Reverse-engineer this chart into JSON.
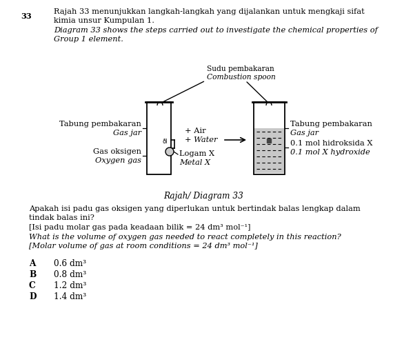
{
  "question_number": "33",
  "title_malay_line1": "Rajah 33 menunjukkan langkah-langkah yang dijalankan untuk mengkaji sifat",
  "title_malay_line2": "kimia unsur Kumpulan 1.",
  "title_english_line1": "Diagram 33 shows the steps carried out to investigate the chemical properties of",
  "title_english_line2": "Group 1 element.",
  "diagram_label": "Rajah/ Diagram 33",
  "question_malay_line1": "Apakah isi padu gas oksigen yang diperlukan untuk bertindak balas lengkap dalam",
  "question_malay_line2": "tindak balas ini?",
  "bracket_malay": "[Isi padu molar gas pada keadaan bilik = 24 dm³ mol⁻¹]",
  "question_english": "What is the volume of oxygen gas needed to react completely in this reaction?",
  "bracket_english": "[Molar volume of gas at room conditions = 24 dm³ mol⁻¹]",
  "options": [
    {
      "letter": "A",
      "value": "0.6 dm³"
    },
    {
      "letter": "B",
      "value": "0.8 dm³"
    },
    {
      "letter": "C",
      "value": "1.2 dm³"
    },
    {
      "letter": "D",
      "value": "1.4 dm³"
    }
  ],
  "label_gas_jar_left_malay": "Tabung pembakaran",
  "label_gas_jar_left_english": "Gas jar",
  "label_oxygen_malay": "Gas oksigen",
  "label_oxygen_english": "Oxygen gas",
  "label_metal_malay": "Logam X",
  "label_metal_english": "Metal X",
  "label_air_line1": "+ Air",
  "label_air_line2": "+ Water",
  "label_combustion_malay": "Sudu pembakaran",
  "label_combustion_english": "Combustion spoon",
  "label_gas_jar_right_malay": "Tabung pembakaran",
  "label_gas_jar_right_english": "Gas jar",
  "label_hydroxide_malay": "0.1 mol hidroksida X",
  "label_hydroxide_english": "0.1 mol X hydroxide",
  "background_color": "#ffffff",
  "text_color": "#000000"
}
